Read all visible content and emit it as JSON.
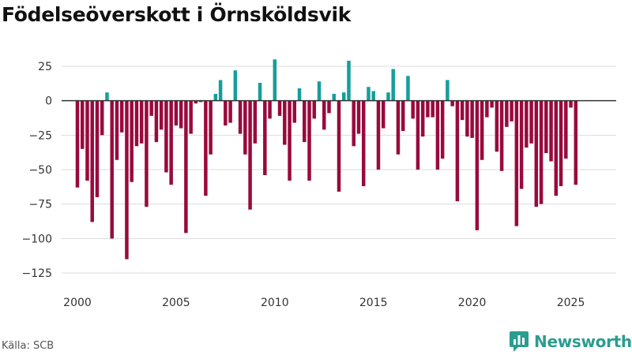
{
  "header": {
    "title": "Födelseöverskott i Örnsköldsvik"
  },
  "footer": {
    "source": "Källa: SCB",
    "brand": "Newsworthy"
  },
  "colors": {
    "positive": "#159e9b",
    "negative": "#990a3c",
    "grid": "#dcdcdc",
    "zero_line": "#333333",
    "brand": "#2a9d8f"
  },
  "chart_data": {
    "type": "bar",
    "title": "Födelseöverskott i Örnsköldsvik",
    "xlabel": "",
    "ylabel": "",
    "x_range": [
      1999.2,
      2027.3
    ],
    "ylim": [
      -125,
      25
    ],
    "y_ticks": [
      25,
      0,
      -25,
      -50,
      -75,
      -100,
      -125
    ],
    "y_tick_labels": [
      "25",
      "0",
      "−25",
      "−50",
      "−75",
      "−100",
      "−125"
    ],
    "x_ticks": [
      2000,
      2005,
      2010,
      2015,
      2020,
      2025
    ],
    "x_tick_labels": [
      "2000",
      "2005",
      "2010",
      "2015",
      "2020",
      "2025"
    ],
    "grid": true,
    "bar_width_months": 0.75,
    "start": {
      "year": 2000,
      "quarter": 1
    },
    "frequency": "quarterly",
    "values": [
      -63,
      -35,
      -58,
      -88,
      -70,
      -25,
      6,
      -100,
      -43,
      -23,
      -115,
      -59,
      -33,
      -31,
      -77,
      -11,
      -30,
      -21,
      -52,
      -61,
      -18,
      -20,
      -96,
      -24,
      -2,
      -1,
      -69,
      -39,
      5,
      15,
      -18,
      -16,
      22,
      -24,
      -39,
      -79,
      -31,
      13,
      -54,
      -13,
      30,
      -11,
      -32,
      -58,
      -16,
      9,
      -30,
      -58,
      -13,
      14,
      -21,
      -9,
      5,
      -66,
      6,
      29,
      -33,
      -24,
      -62,
      10,
      7,
      -50,
      -20,
      6,
      23,
      -39,
      -22,
      18,
      -13,
      -50,
      -26,
      -12,
      -12,
      -50,
      -42,
      15,
      -4,
      -73,
      -14,
      -26,
      -27,
      -94,
      -43,
      -12,
      -5,
      -37,
      -51,
      -19,
      -15,
      -91,
      -64,
      -34,
      -31,
      -77,
      -75,
      -38,
      -44,
      -69,
      -62,
      -42,
      -5,
      -61
    ]
  }
}
